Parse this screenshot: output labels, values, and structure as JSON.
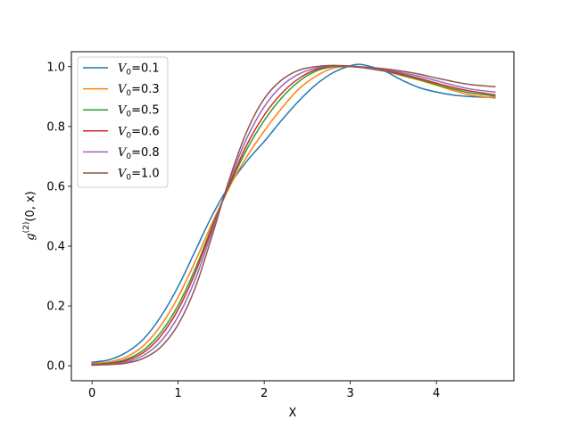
{
  "chart_data": {
    "type": "line",
    "title": "",
    "xlabel": "X",
    "ylabel": {
      "base": "g",
      "sup": "(2)",
      "rest": "(0, x)"
    },
    "xlim": [
      -0.24,
      4.9
    ],
    "ylim": [
      -0.05,
      1.05
    ],
    "xticks": [
      0,
      1,
      2,
      3,
      4
    ],
    "yticks": [
      0.0,
      0.2,
      0.4,
      0.6,
      0.8,
      1.0
    ],
    "xtick_labels": [
      "0",
      "1",
      "2",
      "3",
      "4"
    ],
    "ytick_labels": [
      "0.0",
      "0.2",
      "0.4",
      "0.6",
      "0.8",
      "1.0"
    ],
    "grid": false,
    "legend_position": "upper-left",
    "x": [
      0,
      0.2,
      0.4,
      0.6,
      0.8,
      1.0,
      1.2,
      1.4,
      1.6,
      1.8,
      2.0,
      2.2,
      2.4,
      2.6,
      2.8,
      3.0,
      3.1,
      3.2,
      3.4,
      3.6,
      3.8,
      4.0,
      4.2,
      4.4,
      4.68
    ],
    "series": [
      {
        "name": "V0=0.1",
        "label": {
          "sym": "V",
          "sub": "0",
          "val": "=0.1"
        },
        "color": "#1f77b4",
        "values": [
          0.012,
          0.02,
          0.045,
          0.09,
          0.165,
          0.265,
          0.385,
          0.505,
          0.605,
          0.685,
          0.75,
          0.82,
          0.885,
          0.94,
          0.98,
          1.003,
          1.008,
          1.003,
          0.985,
          0.955,
          0.93,
          0.915,
          0.905,
          0.9,
          0.897
        ]
      },
      {
        "name": "V0=0.3",
        "label": {
          "sym": "V",
          "sub": "0",
          "val": "=0.3"
        },
        "color": "#ff7f0e",
        "values": [
          0.008,
          0.013,
          0.03,
          0.068,
          0.135,
          0.23,
          0.35,
          0.48,
          0.6,
          0.7,
          0.785,
          0.86,
          0.925,
          0.968,
          0.995,
          1.0,
          1.0,
          0.996,
          0.985,
          0.97,
          0.955,
          0.938,
          0.92,
          0.905,
          0.895
        ]
      },
      {
        "name": "V0=0.5",
        "label": {
          "sym": "V",
          "sub": "0",
          "val": "=0.5"
        },
        "color": "#2ca02c",
        "values": [
          0.005,
          0.009,
          0.022,
          0.053,
          0.112,
          0.202,
          0.325,
          0.47,
          0.605,
          0.725,
          0.82,
          0.895,
          0.95,
          0.985,
          1.0,
          1.0,
          0.998,
          0.994,
          0.985,
          0.972,
          0.957,
          0.94,
          0.925,
          0.912,
          0.902
        ]
      },
      {
        "name": "V0=0.6",
        "label": {
          "sym": "V",
          "sub": "0",
          "val": "=0.6"
        },
        "color": "#d62728",
        "values": [
          0.004,
          0.007,
          0.018,
          0.045,
          0.1,
          0.188,
          0.312,
          0.465,
          0.61,
          0.74,
          0.838,
          0.91,
          0.96,
          0.99,
          1.002,
          1.0,
          0.998,
          0.995,
          0.987,
          0.975,
          0.961,
          0.945,
          0.93,
          0.918,
          0.906
        ]
      },
      {
        "name": "V0=0.8",
        "label": {
          "sym": "V",
          "sub": "0",
          "val": "=0.8"
        },
        "color": "#9467bd",
        "values": [
          0.003,
          0.005,
          0.013,
          0.035,
          0.082,
          0.165,
          0.29,
          0.455,
          0.62,
          0.762,
          0.866,
          0.935,
          0.975,
          0.995,
          1.003,
          1.001,
          0.999,
          0.996,
          0.99,
          0.98,
          0.968,
          0.953,
          0.938,
          0.925,
          0.915
        ]
      },
      {
        "name": "V0=1.0",
        "label": {
          "sym": "V",
          "sub": "0",
          "val": "=1.0"
        },
        "color": "#8c564b",
        "values": [
          0.002,
          0.004,
          0.009,
          0.025,
          0.063,
          0.138,
          0.262,
          0.44,
          0.628,
          0.785,
          0.893,
          0.955,
          0.988,
          1.0,
          1.004,
          1.002,
          1.0,
          0.998,
          0.993,
          0.985,
          0.975,
          0.962,
          0.95,
          0.94,
          0.933
        ]
      }
    ]
  }
}
